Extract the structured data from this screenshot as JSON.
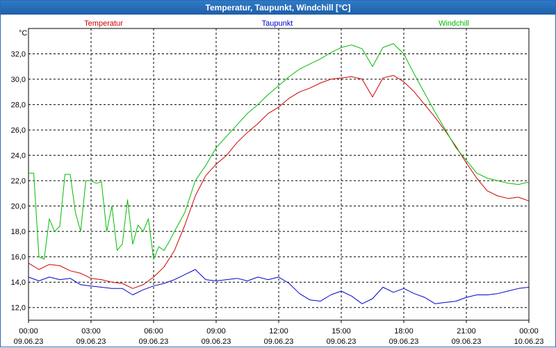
{
  "window": {
    "title": "Temperatur, Taupunkt, Windchill [°C]"
  },
  "chart_data": {
    "type": "line",
    "title": "Temperatur, Taupunkt, Windchill [°C]",
    "ylabel": "°C",
    "ylim": [
      11,
      34
    ],
    "xlim": [
      0,
      24
    ],
    "y_ticks": [
      12,
      14,
      16,
      18,
      20,
      22,
      24,
      26,
      28,
      30,
      32
    ],
    "y_tick_labels": [
      "12,0",
      "14,0",
      "16,0",
      "18,0",
      "20,0",
      "22,0",
      "24,0",
      "26,0",
      "28,0",
      "30,0",
      "32,0"
    ],
    "x_ticks": [
      {
        "hour": 0,
        "time": "00:00",
        "date": "09.06.23"
      },
      {
        "hour": 3,
        "time": "03:00",
        "date": "09.06.23"
      },
      {
        "hour": 6,
        "time": "06:00",
        "date": "09.06.23"
      },
      {
        "hour": 9,
        "time": "09:00",
        "date": "09.06.23"
      },
      {
        "hour": 12,
        "time": "12:00",
        "date": "09.06.23"
      },
      {
        "hour": 15,
        "time": "15:00",
        "date": "09.06.23"
      },
      {
        "hour": 18,
        "time": "18:00",
        "date": "09.06.23"
      },
      {
        "hour": 21,
        "time": "21:00",
        "date": "09.06.23"
      },
      {
        "hour": 24,
        "time": "00:00",
        "date": "10.06.23"
      }
    ],
    "grid": true,
    "legend_position": "top",
    "series": [
      {
        "name": "Temperatur",
        "color": "#cc0000",
        "x": [
          0,
          0.5,
          1,
          1.5,
          2,
          2.5,
          3,
          3.5,
          4,
          4.5,
          5,
          5.5,
          6,
          6.5,
          7,
          7.5,
          8,
          8.5,
          9,
          9.5,
          10,
          10.5,
          11,
          11.5,
          12,
          12.5,
          13,
          13.5,
          14,
          14.5,
          15,
          15.5,
          16,
          16.5,
          17,
          17.5,
          18,
          18.5,
          19,
          19.5,
          20,
          20.5,
          21,
          21.5,
          22,
          22.5,
          23,
          23.5,
          24
        ],
        "values": [
          15.5,
          15.0,
          15.4,
          15.3,
          14.9,
          14.7,
          14.3,
          14.2,
          14.0,
          13.9,
          13.5,
          13.8,
          14.4,
          15.2,
          16.5,
          18.5,
          20.8,
          22.4,
          23.3,
          24.0,
          25.0,
          25.8,
          26.5,
          27.3,
          27.8,
          28.5,
          29.0,
          29.3,
          29.7,
          30.0,
          30.1,
          30.2,
          30.0,
          28.6,
          30.1,
          30.3,
          29.8,
          29.0,
          28.0,
          27.0,
          25.9,
          24.7,
          23.4,
          22.2,
          21.2,
          20.8,
          20.6,
          20.7,
          20.4
        ]
      },
      {
        "name": "Taupunkt",
        "color": "#0000cc",
        "x": [
          0,
          0.5,
          1,
          1.5,
          2,
          2.5,
          3,
          3.5,
          4,
          4.5,
          5,
          5.5,
          6,
          6.5,
          7,
          7.5,
          8,
          8.5,
          9,
          9.5,
          10,
          10.5,
          11,
          11.5,
          12,
          12.5,
          13,
          13.5,
          14,
          14.5,
          15,
          15.5,
          16,
          16.5,
          17,
          17.5,
          18,
          18.5,
          19,
          19.5,
          20,
          20.5,
          21,
          21.5,
          22,
          22.5,
          23,
          23.5,
          24
        ],
        "values": [
          14.4,
          14.1,
          14.4,
          14.2,
          14.3,
          13.8,
          13.7,
          13.6,
          13.5,
          13.5,
          13.0,
          13.4,
          13.7,
          13.9,
          14.2,
          14.6,
          15.0,
          14.2,
          14.1,
          14.2,
          14.3,
          14.1,
          14.4,
          14.2,
          14.4,
          13.9,
          13.1,
          12.6,
          12.5,
          13.0,
          13.3,
          12.9,
          12.3,
          12.7,
          13.6,
          13.2,
          13.5,
          13.1,
          12.8,
          12.3,
          12.4,
          12.5,
          12.8,
          13.0,
          13.0,
          13.1,
          13.3,
          13.5,
          13.6
        ]
      },
      {
        "name": "Windchill",
        "color": "#00bb00",
        "x": [
          0,
          0.25,
          0.5,
          0.75,
          1,
          1.25,
          1.5,
          1.75,
          2,
          2.25,
          2.5,
          2.75,
          3,
          3.25,
          3.5,
          3.75,
          4,
          4.25,
          4.5,
          4.75,
          5,
          5.25,
          5.5,
          5.75,
          6,
          6.25,
          6.5,
          6.75,
          7,
          7.5,
          8,
          8.5,
          9,
          9.5,
          10,
          10.5,
          11,
          11.5,
          12,
          12.5,
          13,
          13.5,
          14,
          14.5,
          15,
          15.5,
          16,
          16.5,
          17,
          17.5,
          18,
          18.5,
          19,
          19.5,
          20,
          20.5,
          21,
          21.5,
          22,
          22.5,
          23,
          23.5,
          24
        ],
        "values": [
          22.6,
          22.6,
          16.0,
          15.8,
          19.0,
          18.0,
          18.4,
          22.5,
          22.5,
          19.5,
          18.0,
          22.0,
          22.0,
          21.8,
          21.9,
          18.0,
          20.0,
          16.5,
          17.0,
          20.5,
          17.0,
          18.5,
          18.0,
          19.0,
          15.8,
          16.8,
          16.5,
          17.2,
          18.0,
          19.5,
          22.0,
          23.2,
          24.6,
          25.5,
          26.4,
          27.3,
          28.0,
          28.8,
          29.5,
          30.2,
          30.8,
          31.2,
          31.6,
          32.1,
          32.5,
          32.7,
          32.4,
          31.0,
          32.5,
          32.8,
          32.0,
          30.4,
          28.9,
          27.4,
          26.0,
          24.6,
          23.6,
          22.6,
          22.2,
          22.0,
          21.8,
          21.7,
          21.9
        ]
      }
    ]
  }
}
